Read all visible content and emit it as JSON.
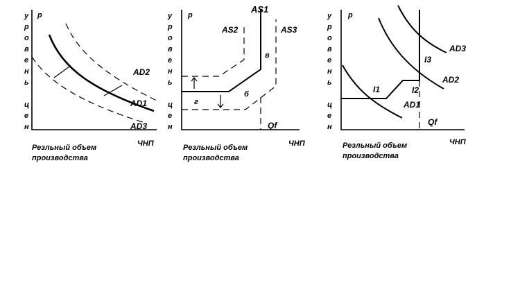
{
  "panel1": {
    "vertical_label": [
      "у",
      "р",
      "о",
      "в",
      "е",
      "н",
      "ь",
      "",
      "ц",
      "е",
      "н"
    ],
    "p_label": "p",
    "curve_labels": {
      "ad2": "AD2",
      "ad1": "AD1",
      "ad3": "AD3"
    },
    "x_axis_label": "ЧНП",
    "caption_line1": "Резльный объем",
    "caption_line2": "производства"
  },
  "panel2": {
    "vertical_label": [
      "у",
      "р",
      "о",
      "в",
      "е",
      "н",
      "ь",
      "",
      "ц",
      "е",
      "н"
    ],
    "p_label": "p",
    "curve_labels": {
      "as1": "AS1",
      "as2": "AS2",
      "as3": "AS3"
    },
    "region_labels": {
      "v": "в",
      "b": "б",
      "g": "г"
    },
    "qf_label": "Qf",
    "x_axis_label": "ЧНП",
    "caption_line1": "Резльный объем",
    "caption_line2": "производства"
  },
  "panel3": {
    "vertical_label": [
      "у",
      "р",
      "о",
      "в",
      "е",
      "н",
      "ь",
      "",
      "ц",
      "е",
      "н"
    ],
    "p_label": "p",
    "curve_labels": {
      "ad3": "AD3",
      "ad2": "AD2",
      "ad1": "AD1"
    },
    "point_labels": {
      "i1": "I1",
      "i2": "I2",
      "i3": "I3"
    },
    "qf_label": "Qf",
    "x_axis_label": "ЧНП",
    "caption_line1": "Резльный объем",
    "caption_line2": "производства"
  }
}
